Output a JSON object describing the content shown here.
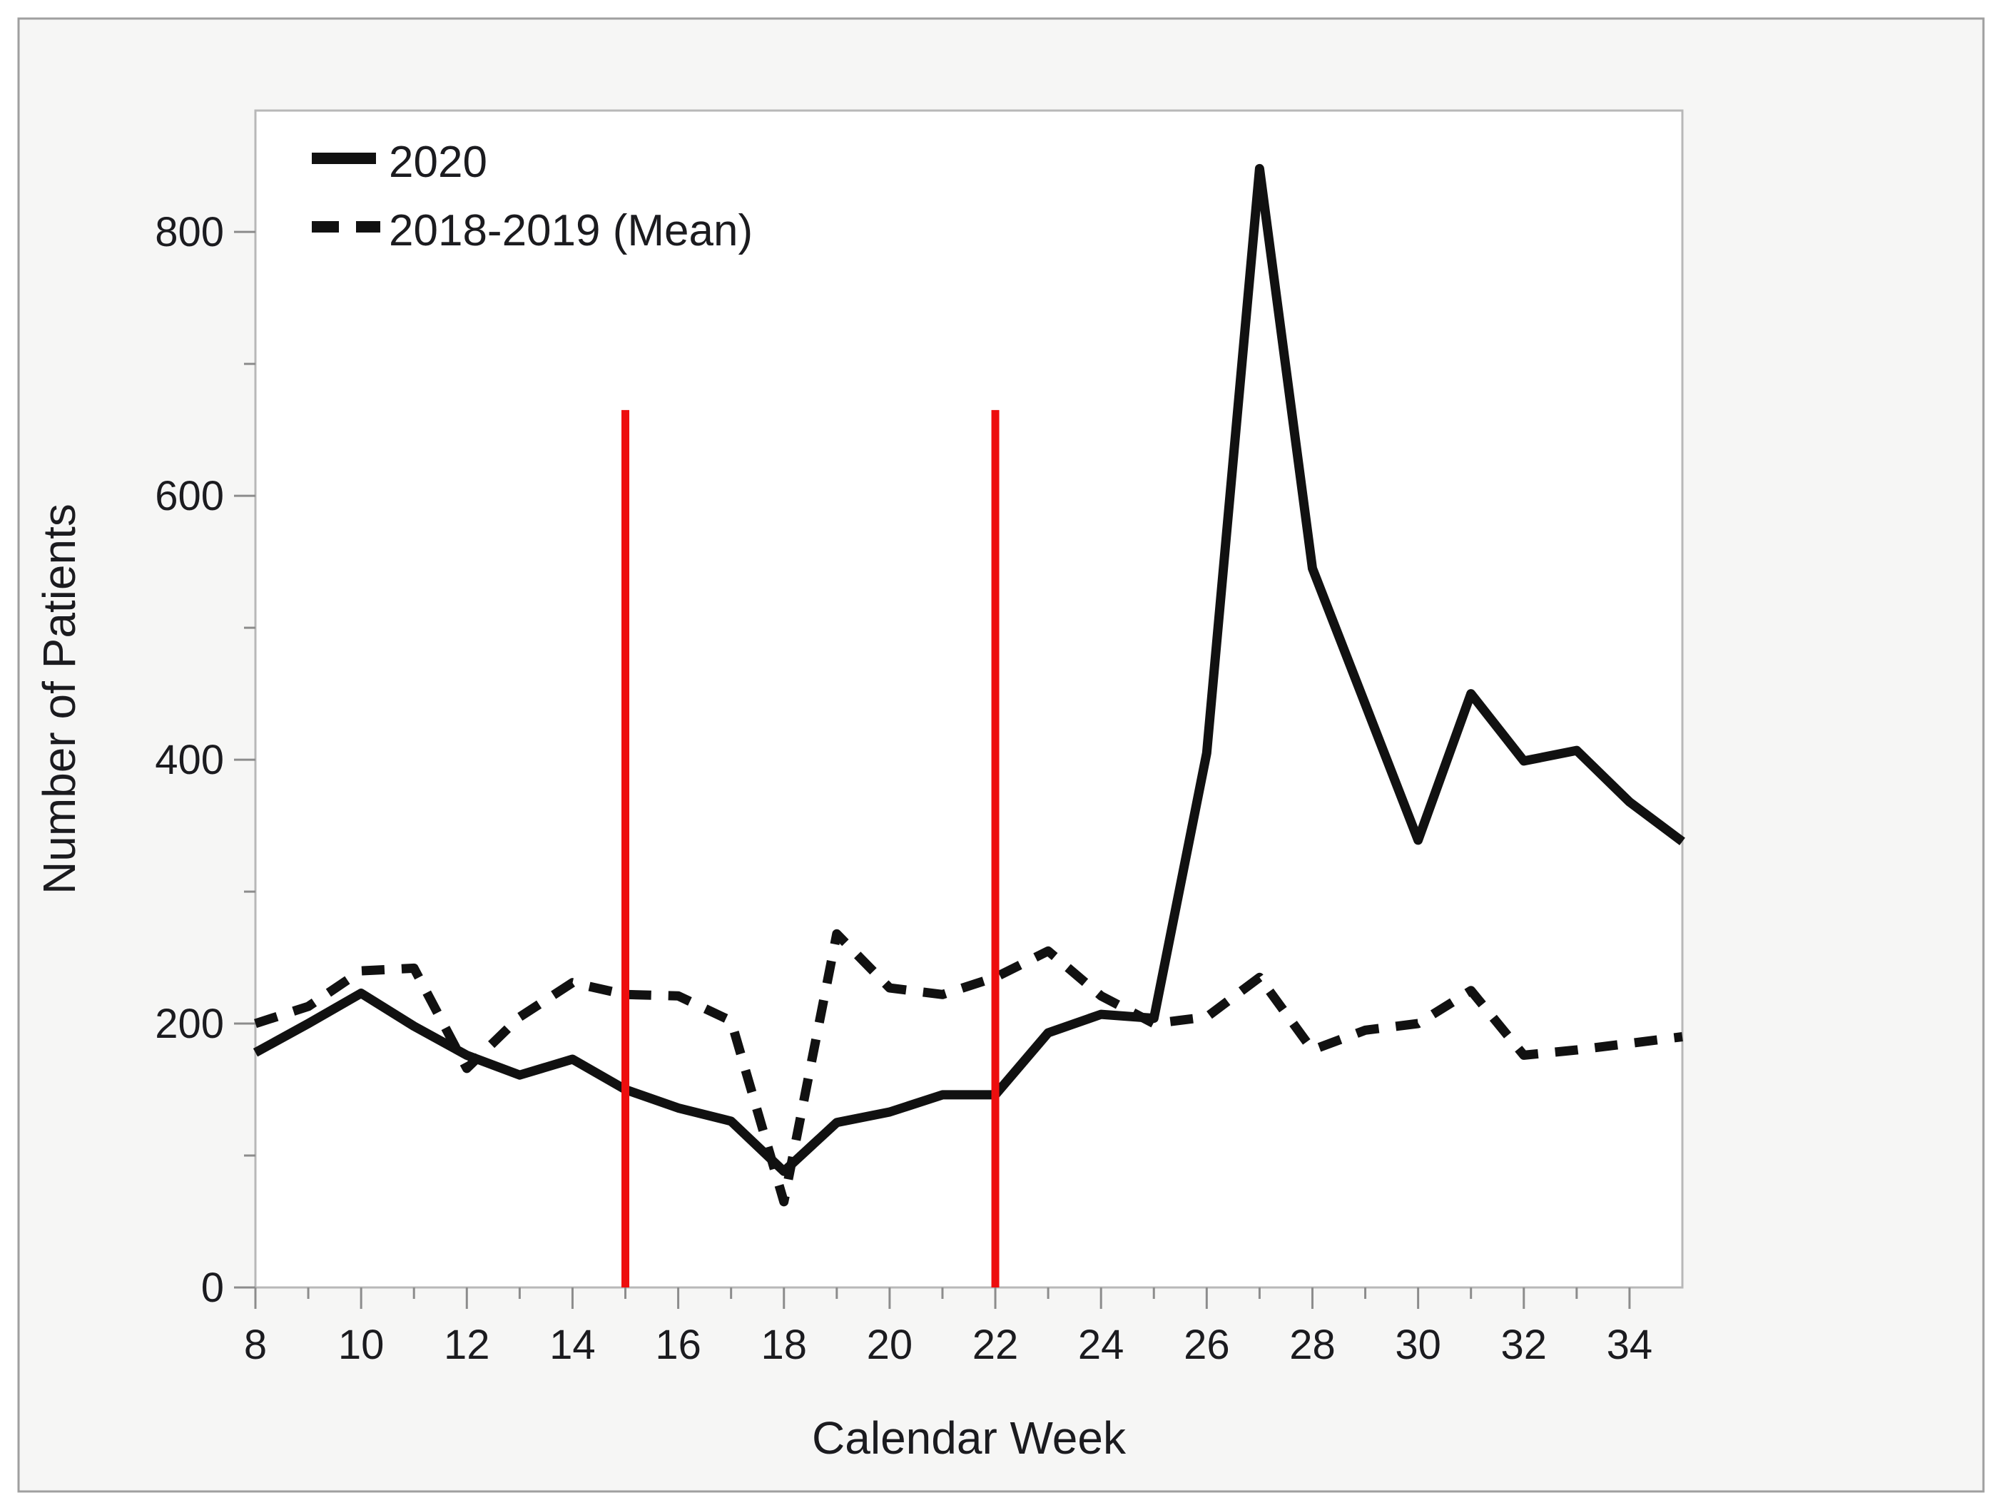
{
  "chart_data": {
    "type": "line",
    "title": "",
    "xlabel": "Calendar Week",
    "ylabel": "Number of Patients",
    "xlim": [
      8,
      35
    ],
    "ylim": [
      0,
      892
    ],
    "grid": false,
    "x": [
      8,
      9,
      10,
      11,
      12,
      13,
      14,
      15,
      16,
      17,
      18,
      19,
      20,
      21,
      22,
      23,
      24,
      25,
      26,
      27,
      28,
      29,
      30,
      31,
      32,
      33,
      34,
      35
    ],
    "series": [
      {
        "name": "2020",
        "style": "solid",
        "color": "#111111",
        "values": [
          178,
          200,
          223,
          198,
          176,
          161,
          173,
          150,
          136,
          126,
          88,
          125,
          133,
          146,
          146,
          193,
          207,
          204,
          405,
          848,
          545,
          442,
          339,
          450,
          399,
          407,
          368,
          338
        ]
      },
      {
        "name": "2018-2019 (Mean)",
        "style": "dashed",
        "color": "#111111",
        "values": [
          200,
          213,
          240,
          242,
          166,
          205,
          231,
          222,
          221,
          202,
          65,
          268,
          227,
          222,
          235,
          255,
          221,
          200,
          205,
          235,
          180,
          195,
          200,
          225,
          176,
          180,
          185,
          190
        ]
      }
    ],
    "x_ticks_major": [
      8,
      10,
      12,
      14,
      16,
      18,
      20,
      22,
      24,
      26,
      28,
      30,
      32,
      34
    ],
    "x_ticks_minor": [
      9,
      11,
      13,
      15,
      17,
      19,
      21,
      23,
      25,
      27,
      29,
      31,
      33
    ],
    "y_ticks_major": [
      0,
      200,
      400,
      600,
      800
    ],
    "y_ticks_minor": [
      100,
      300,
      500,
      700
    ],
    "ref_lines": [
      {
        "x": 15,
        "y0": 0,
        "y1": 665,
        "color": "#ed0e0e"
      },
      {
        "x": 22,
        "y0": 0,
        "y1": 665,
        "color": "#ed0e0e"
      }
    ],
    "legend": {
      "position": "top-left",
      "entries": [
        "2020",
        "2018-2019 (Mean)"
      ]
    }
  },
  "colors": {
    "figure_background": "#f6f6f5",
    "plot_background": "#ffffff",
    "outer_border": "#9f9f9f",
    "plot_border": "#b8b8b8",
    "text": "#1b1b1f",
    "reference_line": "#ed0e0e",
    "series": "#111111"
  }
}
